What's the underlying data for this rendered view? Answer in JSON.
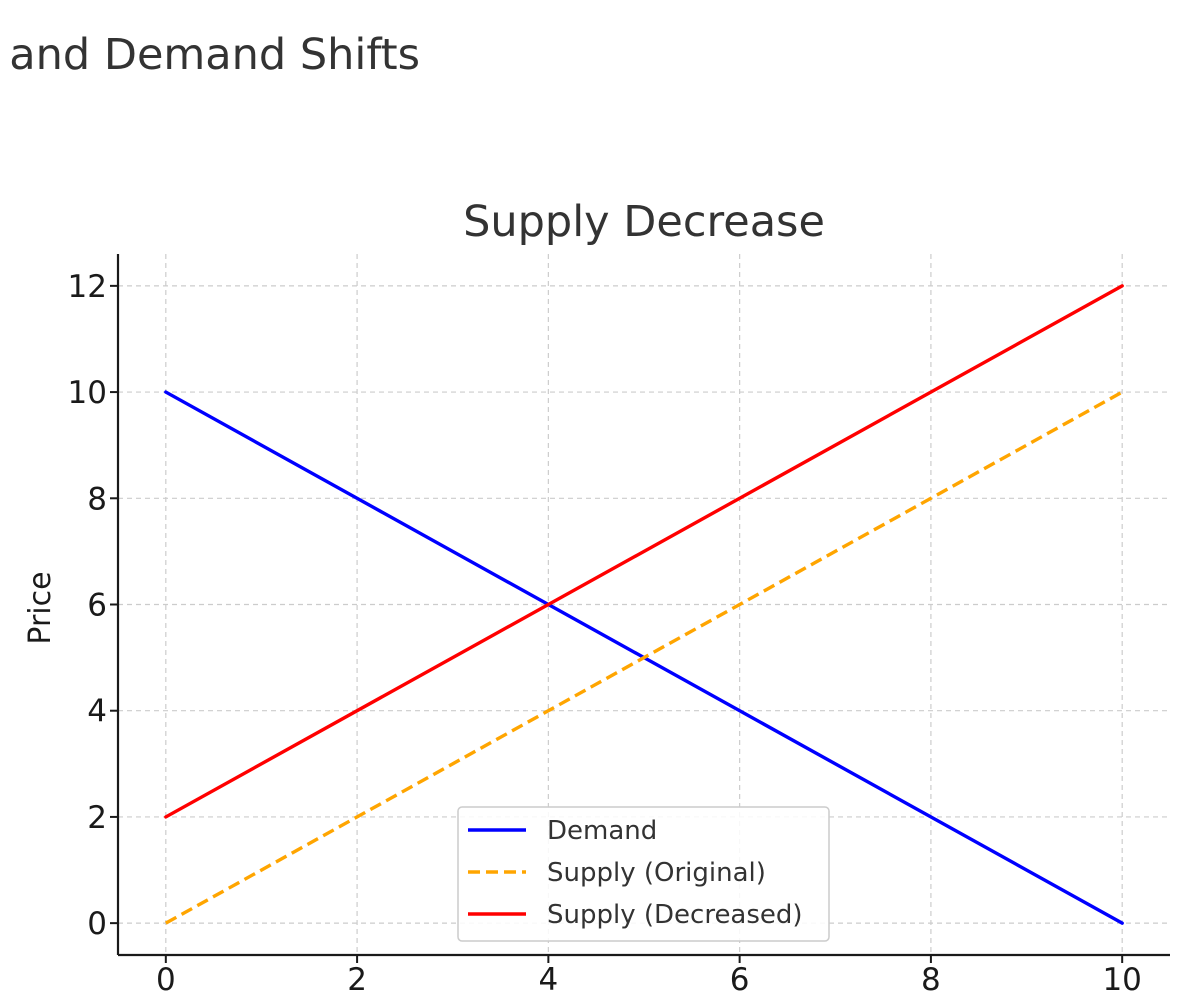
{
  "figure": {
    "title": "Supply and Demand Shifts"
  },
  "chart_data": {
    "type": "line",
    "title": "Supply Decrease",
    "xlabel": "",
    "ylabel": "Price",
    "xlim": [
      -0.5,
      10.5
    ],
    "ylim": [
      -0.6,
      12.6
    ],
    "xticks": [
      0,
      2,
      4,
      6,
      8,
      10
    ],
    "yticks": [
      0,
      2,
      4,
      6,
      8,
      10,
      12
    ],
    "grid": true,
    "legend_position": "lower-center",
    "series": [
      {
        "name": "Demand",
        "color": "#0000ff",
        "dash": "solid",
        "x": [
          0,
          10
        ],
        "y": [
          10,
          0
        ]
      },
      {
        "name": "Supply (Original)",
        "color": "#ffa500",
        "dash": "dashed",
        "x": [
          0,
          10
        ],
        "y": [
          0,
          10
        ]
      },
      {
        "name": "Supply (Decreased)",
        "color": "#ff0000",
        "dash": "solid",
        "x": [
          0,
          10
        ],
        "y": [
          2,
          12
        ]
      }
    ]
  }
}
